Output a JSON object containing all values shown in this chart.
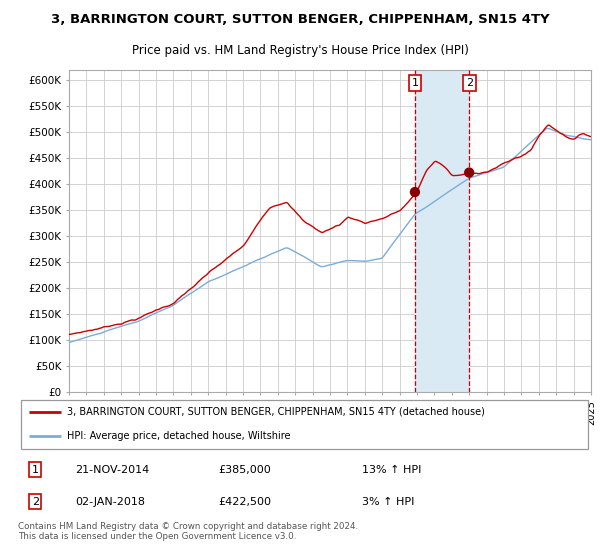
{
  "title": "3, BARRINGTON COURT, SUTTON BENGER, CHIPPENHAM, SN15 4TY",
  "subtitle": "Price paid vs. HM Land Registry's House Price Index (HPI)",
  "legend_line1": "3, BARRINGTON COURT, SUTTON BENGER, CHIPPENHAM, SN15 4TY (detached house)",
  "legend_line2": "HPI: Average price, detached house, Wiltshire",
  "transaction1_date": "21-NOV-2014",
  "transaction1_price": "£385,000",
  "transaction1_hpi": "13% ↑ HPI",
  "transaction2_date": "02-JAN-2018",
  "transaction2_price": "£422,500",
  "transaction2_hpi": "3% ↑ HPI",
  "footer": "Contains HM Land Registry data © Crown copyright and database right 2024.\nThis data is licensed under the Open Government Licence v3.0.",
  "hpi_color": "#7aaddb",
  "property_color": "#cc0000",
  "transaction_dot_color": "#880000",
  "vline_color": "#cc0000",
  "shade_color": "#daeaf5",
  "background_color": "#ffffff",
  "grid_color": "#cccccc",
  "ylim": [
    0,
    620000
  ],
  "yticks": [
    0,
    50000,
    100000,
    150000,
    200000,
    250000,
    300000,
    350000,
    400000,
    450000,
    500000,
    550000,
    600000
  ],
  "ytick_labels": [
    "£0",
    "£50K",
    "£100K",
    "£150K",
    "£200K",
    "£250K",
    "£300K",
    "£350K",
    "£400K",
    "£450K",
    "£500K",
    "£550K",
    "£600K"
  ],
  "xlim": [
    1995,
    2025
  ],
  "transaction1_x": 2014.88,
  "transaction2_x": 2018.0,
  "transaction1_y": 385000,
  "transaction2_y": 422500
}
